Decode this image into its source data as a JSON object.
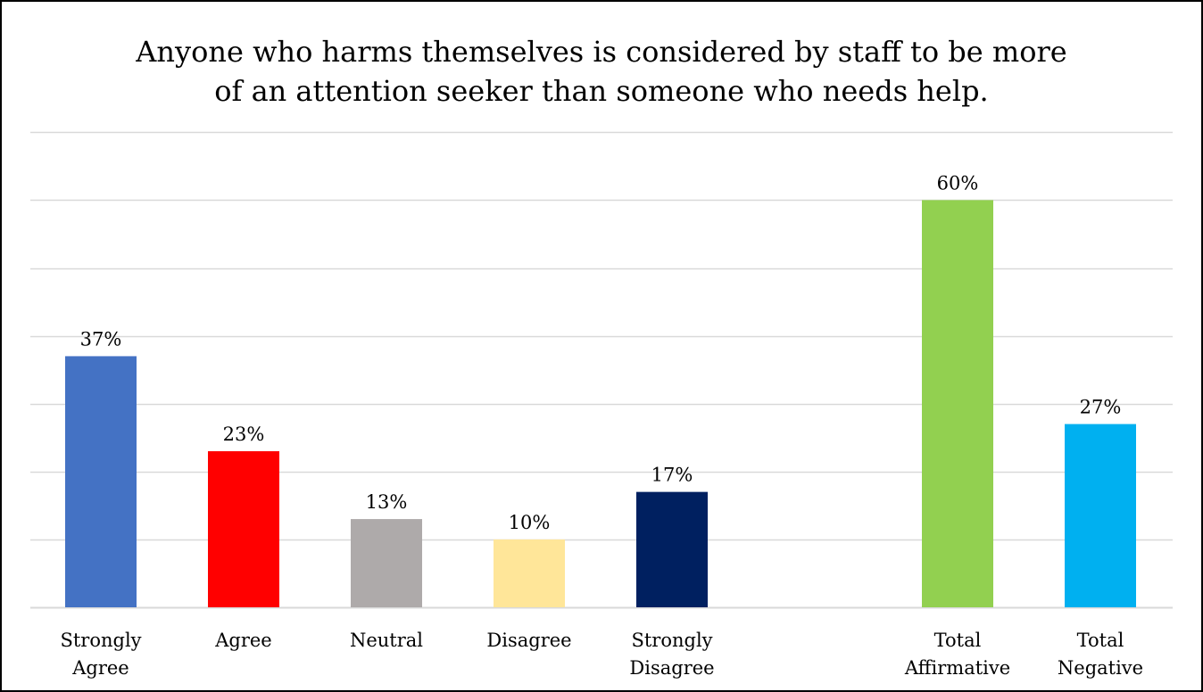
{
  "chart_data": {
    "type": "bar",
    "title_lines": [
      "Anyone who harms themselves is considered by staff to be more",
      "of an attention seeker than someone who needs help."
    ],
    "categories": [
      [
        "Strongly",
        "Agree"
      ],
      [
        "Agree"
      ],
      [
        "Neutral"
      ],
      [
        "Disagree"
      ],
      [
        "Strongly",
        "Disagree"
      ],
      [
        "Total",
        "Affirmative"
      ],
      [
        "Total",
        "Negative"
      ]
    ],
    "values": [
      37,
      23,
      13,
      10,
      17,
      60,
      27
    ],
    "value_labels": [
      "37%",
      "23%",
      "13%",
      "10%",
      "17%",
      "60%",
      "27%"
    ],
    "colors": [
      "#4472C4",
      "#FF0000",
      "#AEAAAA",
      "#FFE699",
      "#002060",
      "#92D050",
      "#00B0F0"
    ],
    "ylim": [
      0,
      70
    ],
    "grid": true,
    "gridline_color": "#D9D9D9",
    "axis_visible": false
  }
}
